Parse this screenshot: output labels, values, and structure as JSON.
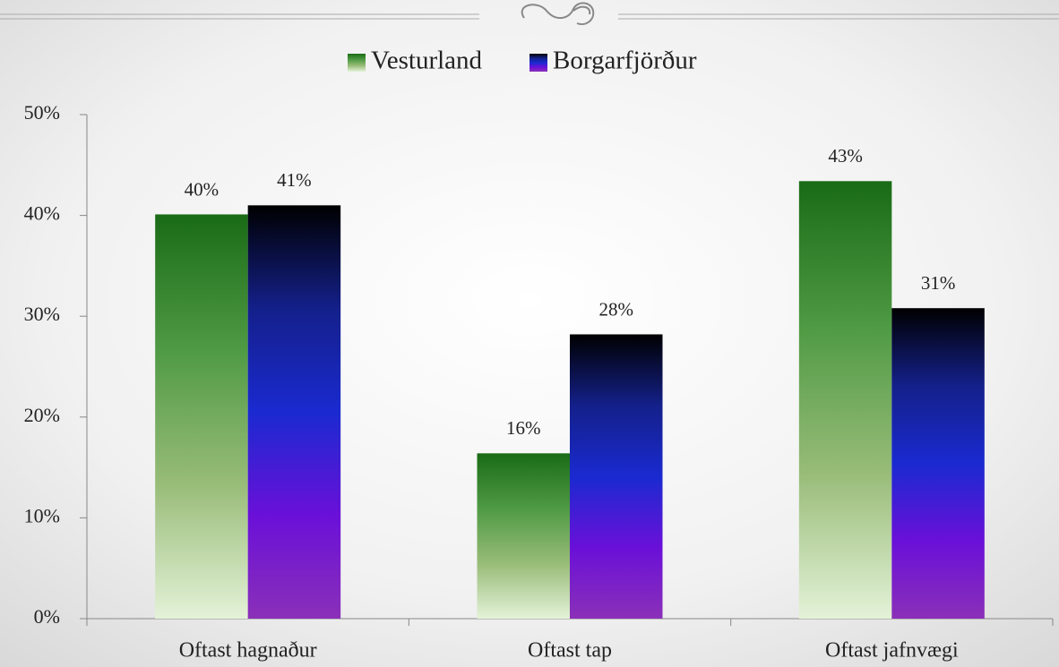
{
  "chart_data": {
    "type": "bar",
    "categories": [
      "Oftast hagnaður",
      "Oftast tap",
      "Oftast jafnvægi"
    ],
    "series": [
      {
        "name": "Vesturland",
        "color": [
          "#1a6b16",
          "#4f9a44",
          "#98bc78",
          "#e4f2d8"
        ],
        "values": [
          40.1,
          16.4,
          43.4
        ],
        "value_labels": [
          "40%",
          "16%",
          "43%"
        ]
      },
      {
        "name": "Borgarfjörður",
        "color": [
          "#000000",
          "#14208a",
          "#1a2ad0",
          "#6a10d8",
          "#8a30b8"
        ],
        "values": [
          41.0,
          28.2,
          30.8
        ],
        "value_labels": [
          "41%",
          "28%",
          "31%"
        ]
      }
    ],
    "ylim": [
      0,
      50
    ],
    "yticks": [
      {
        "value": 0,
        "label": "0%"
      },
      {
        "value": 10,
        "label": "10%"
      },
      {
        "value": 20,
        "label": "20%"
      },
      {
        "value": 30,
        "label": "30%"
      },
      {
        "value": 40,
        "label": "40%"
      },
      {
        "value": 50,
        "label": "50%"
      }
    ]
  }
}
